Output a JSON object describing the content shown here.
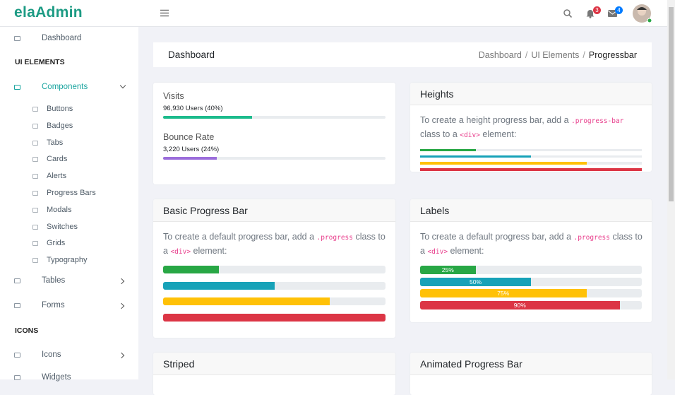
{
  "header": {
    "brand": "elaAdmin",
    "notification_count": 3,
    "message_count": 4
  },
  "sidebar": {
    "dashboard": "Dashboard",
    "section_ui": "UI ELEMENTS",
    "components": "Components",
    "components_children": [
      "Buttons",
      "Badges",
      "Tabs",
      "Cards",
      "Alerts",
      "Progress Bars",
      "Modals",
      "Switches",
      "Grids",
      "Typography"
    ],
    "tables": "Tables",
    "forms": "Forms",
    "section_icons": "ICONS",
    "icons": "Icons",
    "widgets": "Widgets"
  },
  "page": {
    "title": "Dashboard",
    "breadcrumb": [
      "Dashboard",
      "UI Elements",
      "Progressbar"
    ],
    "separator": "/"
  },
  "stats": [
    {
      "title": "Visits",
      "detail": "96,930 Users (40%)",
      "value": 40,
      "color": "#1cbb8c"
    },
    {
      "title": "Bounce Rate",
      "detail": "3,220 Users (24%)",
      "value": 24,
      "color": "#9b6ddb"
    }
  ],
  "cards": {
    "heights": {
      "title": "Heights",
      "description": [
        "To create a height progress bar, add a ",
        ".progress-bar",
        " class to a ",
        "<div>",
        " element:"
      ],
      "bars": [
        {
          "value": 25,
          "color": "#28a745"
        },
        {
          "value": 50,
          "color": "#17a2b8"
        },
        {
          "value": 75,
          "color": "#ffc107"
        },
        {
          "value": 100,
          "color": "#dc3545"
        }
      ]
    },
    "basic": {
      "title": "Basic Progress Bar",
      "description": [
        "To create a default progress bar, add a ",
        ".progress",
        " class to a ",
        "<div>",
        " element:"
      ],
      "bars": [
        {
          "value": 25,
          "color": "#28a745"
        },
        {
          "value": 50,
          "color": "#17a2b8"
        },
        {
          "value": 75,
          "color": "#ffc107"
        },
        {
          "value": 100,
          "color": "#dc3545"
        }
      ]
    },
    "labels": {
      "title": "Labels",
      "description": [
        "To create a default progress bar, add a ",
        ".progress",
        " class to a ",
        "<div>",
        " element:"
      ],
      "bars": [
        {
          "value": 25,
          "label": "25%",
          "color": "#28a745"
        },
        {
          "value": 50,
          "label": "50%",
          "color": "#17a2b8"
        },
        {
          "value": 75,
          "label": "75%",
          "color": "#ffc107"
        },
        {
          "value": 90,
          "label": "90%",
          "color": "#dc3545"
        }
      ]
    },
    "striped": {
      "title": "Striped"
    },
    "animated": {
      "title": "Animated Progress Bar"
    }
  }
}
